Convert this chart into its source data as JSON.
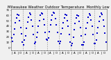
{
  "title": "Milwaukee Weather Outdoor Temperature  Monthly Low",
  "bg_color": "#f0f0f0",
  "dot_color": "#0000cc",
  "grid_color": "#888888",
  "months": [
    "J",
    "F",
    "M",
    "A",
    "M",
    "J",
    "J",
    "A",
    "S",
    "O",
    "N",
    "D"
  ],
  "num_years": 8,
  "data": [
    [
      18,
      12,
      25,
      35,
      46,
      55,
      62,
      60,
      50,
      38,
      26,
      10
    ],
    [
      6,
      14,
      22,
      36,
      48,
      57,
      64,
      62,
      52,
      40,
      24,
      8
    ],
    [
      10,
      20,
      28,
      40,
      50,
      60,
      65,
      63,
      53,
      42,
      28,
      16
    ],
    [
      14,
      18,
      30,
      42,
      52,
      61,
      66,
      64,
      54,
      42,
      28,
      12
    ],
    [
      8,
      12,
      26,
      36,
      47,
      56,
      62,
      60,
      50,
      40,
      24,
      10
    ],
    [
      4,
      8,
      20,
      34,
      45,
      55,
      61,
      59,
      49,
      38,
      22,
      6
    ],
    [
      6,
      10,
      24,
      36,
      47,
      57,
      63,
      61,
      51,
      40,
      25,
      8
    ],
    [
      8,
      14,
      27,
      38,
      49,
      58,
      64,
      62,
      52,
      40,
      27,
      10
    ]
  ],
  "ylim": [
    -5,
    72
  ],
  "ytick_vals": [
    0,
    10,
    20,
    30,
    40,
    50,
    60,
    70
  ],
  "ytick_labels": [
    "0",
    "10",
    "20",
    "30",
    "40",
    "50",
    "60",
    "70"
  ],
  "title_fontsize": 3.8,
  "tick_fontsize": 2.8,
  "dot_size": 1.5,
  "xlabel_every": 3
}
